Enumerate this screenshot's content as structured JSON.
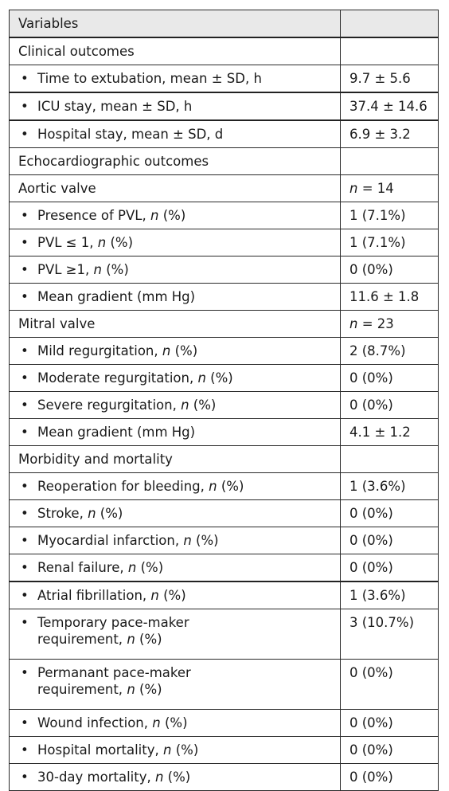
{
  "header": {
    "col1": "Variables",
    "col2": ""
  },
  "rows": [
    {
      "type": "section",
      "label": "Clinical outcomes",
      "value": ""
    },
    {
      "type": "item",
      "label": "Time to extubation, mean ± SD, h",
      "value": "9.7 ± 5.6"
    },
    {
      "type": "item",
      "label": "ICU stay, mean ± SD, h",
      "value": "37.4 ± 14.6"
    },
    {
      "type": "item",
      "label": "Hospital stay, mean ± SD, d",
      "value": "6.9 ± 3.2"
    },
    {
      "type": "section",
      "label": "Echocardiographic outcomes",
      "value": ""
    },
    {
      "type": "section",
      "label": "Aortic valve",
      "value_n": "n",
      "value": " = 14"
    },
    {
      "type": "item",
      "label": "Presence of PVL, ",
      "label_n": "n",
      "label_tail": " (%)",
      "value": "1 (7.1%)"
    },
    {
      "type": "item",
      "label": "PVL ≤ 1, ",
      "label_n": "n",
      "label_tail": " (%)",
      "value": "1 (7.1%)"
    },
    {
      "type": "item",
      "label": "PVL ≥1, ",
      "label_n": "n",
      "label_tail": " (%)",
      "value": "0 (0%)"
    },
    {
      "type": "item",
      "label": "Mean gradient (mm Hg)",
      "value": "11.6 ± 1.8"
    },
    {
      "type": "section",
      "label": "Mitral valve",
      "value_n": "n",
      "value": " = 23"
    },
    {
      "type": "item",
      "label": "Mild regurgitation, ",
      "label_n": "n",
      "label_tail": " (%)",
      "value": "2 (8.7%)"
    },
    {
      "type": "item",
      "label": "Moderate regurgitation, ",
      "label_n": "n",
      "label_tail": " (%)",
      "value": "0 (0%)"
    },
    {
      "type": "item",
      "label": "Severe regurgitation, ",
      "label_n": "n",
      "label_tail": " (%)",
      "value": "0 (0%)"
    },
    {
      "type": "item",
      "label": "Mean gradient (mm Hg)",
      "value": "4.1 ± 1.2"
    },
    {
      "type": "section",
      "label": "Morbidity and mortality",
      "value": ""
    },
    {
      "type": "item",
      "label": "Reoperation for bleeding, ",
      "label_n": "n",
      "label_tail": " (%)",
      "value": "1 (3.6%)"
    },
    {
      "type": "item",
      "label": "Stroke, ",
      "label_n": "n",
      "label_tail": " (%)",
      "value": "0 (0%)"
    },
    {
      "type": "item",
      "label": "Myocardial infarction, ",
      "label_n": "n",
      "label_tail": " (%)",
      "value": "0 (0%)"
    },
    {
      "type": "item",
      "label": "Renal failure, ",
      "label_n": "n",
      "label_tail": " (%)",
      "value": "0 (0%)"
    },
    {
      "type": "item",
      "label": "Atrial fibrillation, ",
      "label_n": "n",
      "label_tail": " (%)",
      "value": "1 (3.6%)"
    },
    {
      "type": "item",
      "label": "Temporary pace-maker requirement, ",
      "label_n": "n",
      "label_tail": " (%)",
      "value": "3 (10.7%)"
    },
    {
      "type": "item",
      "label": "Permanant pace-maker requirement, ",
      "label_n": "n",
      "label_tail": " (%)",
      "value": "0 (0%)"
    },
    {
      "type": "item",
      "label": "Wound infection, ",
      "label_n": "n",
      "label_tail": " (%)",
      "value": "0 (0%)"
    },
    {
      "type": "item",
      "label": "Hospital mortality, ",
      "label_n": "n",
      "label_tail": " (%)",
      "value": "0 (0%)"
    },
    {
      "type": "item",
      "label": "30-day mortality, ",
      "label_n": "n",
      "label_tail": " (%)",
      "value": "0 (0%)"
    }
  ],
  "bullet_glyph": "•"
}
